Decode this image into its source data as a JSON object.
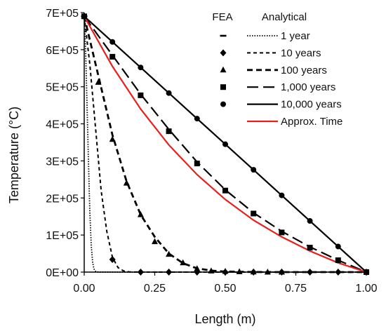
{
  "chart_data": {
    "type": "line",
    "xlabel": "Length (m)",
    "ylabel": "Temperature (°C)",
    "xlim": [
      0,
      1
    ],
    "ylim": [
      0,
      700000
    ],
    "x_ticks": [
      "0.00",
      "0.25",
      "0.50",
      "0.75",
      "1.00"
    ],
    "y_ticks": [
      "0E+00",
      "1E+05",
      "2E+05",
      "3E+05",
      "4E+05",
      "5E+05",
      "6E+05",
      "7E+05"
    ],
    "grid": false,
    "legend_position": "top-right",
    "legend": {
      "fea_header": "FEA",
      "analytical_header": "Analytical"
    },
    "series": [
      {
        "name": "1 year",
        "color": "#000000",
        "marker": "dash",
        "line_style": "dotted",
        "analytical": [
          [
            0.0,
            690000
          ],
          [
            0.005,
            600000
          ],
          [
            0.01,
            450000
          ],
          [
            0.015,
            300000
          ],
          [
            0.02,
            160000
          ],
          [
            0.025,
            70000
          ],
          [
            0.03,
            25000
          ],
          [
            0.035,
            8000
          ],
          [
            0.04,
            2000
          ],
          [
            0.05,
            0
          ],
          [
            1.0,
            0
          ]
        ],
        "fea": [
          [
            0.0,
            690000
          ]
        ]
      },
      {
        "name": "10 years",
        "color": "#000000",
        "marker": "diamond",
        "line_style": "short-dash",
        "analytical": [
          [
            0.0,
            690000
          ],
          [
            0.02,
            560000
          ],
          [
            0.04,
            390000
          ],
          [
            0.06,
            220000
          ],
          [
            0.08,
            110000
          ],
          [
            0.1,
            40000
          ],
          [
            0.12,
            12000
          ],
          [
            0.14,
            3000
          ],
          [
            0.16,
            500
          ],
          [
            0.2,
            0
          ],
          [
            1.0,
            0
          ]
        ],
        "fea": [
          [
            0.0,
            690000
          ],
          [
            0.1,
            34000
          ],
          [
            0.2,
            0
          ],
          [
            0.3,
            0
          ],
          [
            0.4,
            0
          ],
          [
            0.5,
            0
          ],
          [
            0.6,
            0
          ],
          [
            0.7,
            0
          ],
          [
            0.8,
            0
          ],
          [
            0.9,
            0
          ],
          [
            1.0,
            0
          ]
        ]
      },
      {
        "name": "100 years",
        "color": "#000000",
        "marker": "triangle",
        "line_style": "medium-dash",
        "analytical": [
          [
            0.0,
            690000
          ],
          [
            0.05,
            530000
          ],
          [
            0.1,
            370000
          ],
          [
            0.15,
            245000
          ],
          [
            0.2,
            155000
          ],
          [
            0.25,
            95000
          ],
          [
            0.3,
            50000
          ],
          [
            0.35,
            24000
          ],
          [
            0.4,
            10000
          ],
          [
            0.45,
            4000
          ],
          [
            0.5,
            1500
          ],
          [
            0.6,
            200
          ],
          [
            0.7,
            0
          ],
          [
            1.0,
            0
          ]
        ],
        "fea": [
          [
            0.0,
            690000
          ],
          [
            0.05,
            512000
          ],
          [
            0.1,
            358000
          ],
          [
            0.15,
            240000
          ],
          [
            0.2,
            155000
          ],
          [
            0.25,
            82000
          ],
          [
            0.3,
            48000
          ],
          [
            0.35,
            25000
          ],
          [
            0.4,
            9000
          ],
          [
            0.45,
            3000
          ],
          [
            0.5,
            2000
          ],
          [
            0.55,
            1000
          ],
          [
            0.6,
            500
          ],
          [
            0.65,
            0
          ],
          [
            0.7,
            0
          ]
        ]
      },
      {
        "name": "1,000 years",
        "color": "#000000",
        "marker": "square",
        "line_style": "long-dash",
        "analytical": [
          [
            0.0,
            690000
          ],
          [
            0.1,
            585000
          ],
          [
            0.2,
            480000
          ],
          [
            0.3,
            385000
          ],
          [
            0.4,
            297000
          ],
          [
            0.5,
            222000
          ],
          [
            0.6,
            160000
          ],
          [
            0.7,
            110000
          ],
          [
            0.8,
            68000
          ],
          [
            0.9,
            32000
          ],
          [
            1.0,
            0
          ]
        ],
        "fea": [
          [
            0.0,
            690000
          ],
          [
            0.1,
            581000
          ],
          [
            0.2,
            477000
          ],
          [
            0.3,
            380000
          ],
          [
            0.4,
            293000
          ],
          [
            0.5,
            220000
          ],
          [
            0.6,
            158000
          ],
          [
            0.7,
            107000
          ],
          [
            0.8,
            66000
          ],
          [
            0.9,
            32000
          ],
          [
            1.0,
            0
          ]
        ]
      },
      {
        "name": "10,000 years",
        "color": "#000000",
        "marker": "circle",
        "line_style": "solid",
        "analytical": [
          [
            0.0,
            690000
          ],
          [
            1.0,
            0
          ]
        ],
        "fea": [
          [
            0.0,
            690000
          ],
          [
            0.1,
            621000
          ],
          [
            0.2,
            552000
          ],
          [
            0.3,
            483000
          ],
          [
            0.4,
            414000
          ],
          [
            0.5,
            345000
          ],
          [
            0.6,
            276000
          ],
          [
            0.7,
            207000
          ],
          [
            0.8,
            138000
          ],
          [
            0.9,
            69000
          ],
          [
            1.0,
            0
          ]
        ]
      },
      {
        "name": "Approx. Time",
        "color": "#e8201c",
        "marker": "none",
        "line_style": "solid",
        "analytical": [
          [
            0.0,
            690000
          ],
          [
            0.1,
            555000
          ],
          [
            0.2,
            440000
          ],
          [
            0.3,
            343000
          ],
          [
            0.4,
            263000
          ],
          [
            0.5,
            196000
          ],
          [
            0.6,
            140000
          ],
          [
            0.7,
            95000
          ],
          [
            0.8,
            57000
          ],
          [
            0.9,
            25000
          ],
          [
            1.0,
            0
          ]
        ],
        "fea": []
      }
    ]
  }
}
